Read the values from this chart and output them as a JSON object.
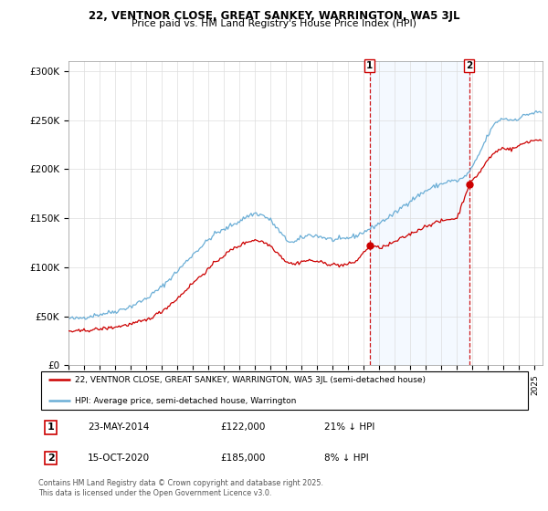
{
  "title1": "22, VENTNOR CLOSE, GREAT SANKEY, WARRINGTON, WA5 3JL",
  "title2": "Price paid vs. HM Land Registry's House Price Index (HPI)",
  "ylabel_ticks": [
    "£0",
    "£50K",
    "£100K",
    "£150K",
    "£200K",
    "£250K",
    "£300K"
  ],
  "ytick_vals": [
    0,
    50000,
    100000,
    150000,
    200000,
    250000,
    300000
  ],
  "ylim": [
    0,
    310000
  ],
  "xlim_start": 1995.0,
  "xlim_end": 2025.5,
  "hpi_color": "#6baed6",
  "price_color": "#cc0000",
  "sale1_date": 2014.38,
  "sale1_price": 122000,
  "sale2_date": 2020.79,
  "sale2_price": 185000,
  "legend_label1": "22, VENTNOR CLOSE, GREAT SANKEY, WARRINGTON, WA5 3JL (semi-detached house)",
  "legend_label2": "HPI: Average price, semi-detached house, Warrington",
  "footer": "Contains HM Land Registry data © Crown copyright and database right 2025.\nThis data is licensed under the Open Government Licence v3.0.",
  "bg_highlight_color": "#ddeeff"
}
